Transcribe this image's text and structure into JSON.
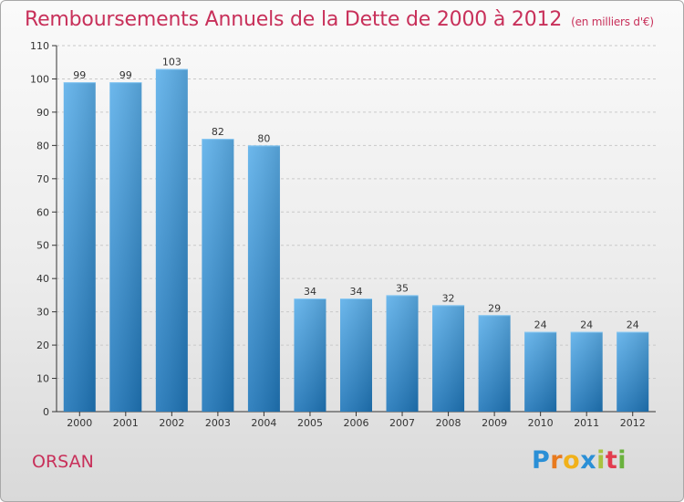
{
  "header": {
    "title": "Remboursements Annuels de la Dette de 2000 à 2012",
    "subtitle": "(en milliers d'€)"
  },
  "commune": "ORSAN",
  "brand": "Proxiti",
  "colors": {
    "accent": "#c8305a",
    "bar_top": "#5db0ea",
    "bar_bottom": "#1f76b9"
  },
  "chart_data": {
    "type": "bar",
    "title": "Remboursements Annuels de la Dette de 2000 à 2012",
    "xlabel": "",
    "ylabel": "",
    "categories": [
      "2000",
      "2001",
      "2002",
      "2003",
      "2004",
      "2005",
      "2006",
      "2007",
      "2008",
      "2009",
      "2010",
      "2011",
      "2012"
    ],
    "values": [
      99,
      99,
      103,
      82,
      80,
      34,
      34,
      35,
      32,
      29,
      24,
      24,
      24
    ],
    "ylim": [
      0,
      110
    ],
    "yticks": [
      0,
      10,
      20,
      30,
      40,
      50,
      60,
      70,
      80,
      90,
      100,
      110
    ],
    "grid": true,
    "legend": "none"
  }
}
